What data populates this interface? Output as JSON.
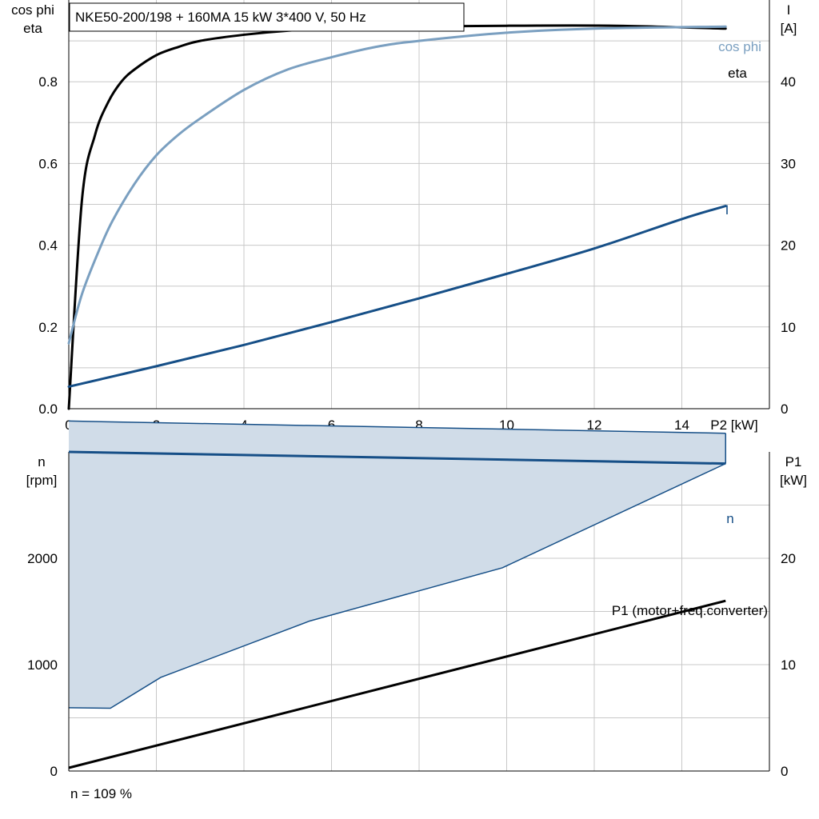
{
  "title": "NKE50-200/198 + 160MA   15 kW   3*400 V, 50 Hz",
  "note": "n = 109 %",
  "colors": {
    "eta": "#000000",
    "cos_phi": "#7a9fc0",
    "current": "#164f87",
    "speed": "#164f87",
    "band_fill": "#d0dce8",
    "p1": "#000000"
  },
  "chart_data": [
    {
      "id": "top",
      "type": "line",
      "xlabel": "P2 [kW]",
      "ylabel_left": [
        "cos phi",
        "eta"
      ],
      "ylabel_right": [
        "I",
        "[A]"
      ],
      "xlim": [
        0,
        16
      ],
      "ylim_left": [
        0,
        1.0
      ],
      "ylim_right": [
        0,
        50
      ],
      "xticks": [
        "0",
        "2",
        "4",
        "6",
        "8",
        "10",
        "12",
        "14"
      ],
      "yticks_left": [
        "0.0",
        "0.2",
        "0.4",
        "0.6",
        "0.8"
      ],
      "yticks_right": [
        "0",
        "10",
        "20",
        "30",
        "40"
      ],
      "grid": true,
      "series": [
        {
          "name": "eta",
          "axis": "left",
          "x": [
            0,
            0.3,
            0.6,
            0.9,
            1.2,
            1.5,
            2,
            2.5,
            3,
            4,
            5,
            6,
            8,
            10,
            12.5,
            15
          ],
          "y": [
            0.0,
            0.51,
            0.67,
            0.75,
            0.8,
            0.83,
            0.865,
            0.885,
            0.9,
            0.915,
            0.925,
            0.93,
            0.935,
            0.937,
            0.937,
            0.93
          ]
        },
        {
          "name": "cos phi",
          "axis": "left",
          "x": [
            0,
            0.3,
            0.7,
            1.0,
            1.5,
            2,
            2.5,
            3,
            4,
            5,
            6,
            7,
            8,
            10,
            12,
            15
          ],
          "y": [
            0.16,
            0.28,
            0.39,
            0.46,
            0.55,
            0.62,
            0.67,
            0.71,
            0.78,
            0.83,
            0.86,
            0.885,
            0.9,
            0.92,
            0.93,
            0.935
          ]
        },
        {
          "name": "I",
          "axis": "right",
          "x": [
            0,
            2,
            4,
            6,
            8,
            10,
            12,
            14,
            15
          ],
          "y": [
            2.7,
            5.2,
            7.8,
            10.6,
            13.5,
            16.5,
            19.6,
            23.2,
            24.8
          ]
        }
      ]
    },
    {
      "id": "bottom",
      "type": "line",
      "ylabel_left": [
        "n",
        "[rpm]"
      ],
      "ylabel_right": [
        "P1",
        "[kW]"
      ],
      "xlim": [
        0,
        16
      ],
      "ylim_left": [
        0,
        3000
      ],
      "ylim_right": [
        0,
        30
      ],
      "yticks_left": [
        "0",
        "1000",
        "2000"
      ],
      "yticks_right": [
        "0",
        "10",
        "20"
      ],
      "grid": true,
      "band": {
        "x_upper": [
          0,
          15
        ],
        "y_upper": [
          3290,
          3175
        ],
        "x_lower": [
          0,
          0.95,
          2.1,
          5.5,
          9.9,
          15
        ],
        "y_lower": [
          595,
          590,
          880,
          1410,
          1910,
          2890
        ]
      },
      "series": [
        {
          "name": "n",
          "axis": "left",
          "x": [
            0,
            15
          ],
          "y": [
            3000,
            2890
          ]
        },
        {
          "name": "P1 (motor+freq.converter)",
          "axis": "right",
          "x": [
            0,
            15
          ],
          "y": [
            0.3,
            16
          ]
        }
      ]
    }
  ]
}
